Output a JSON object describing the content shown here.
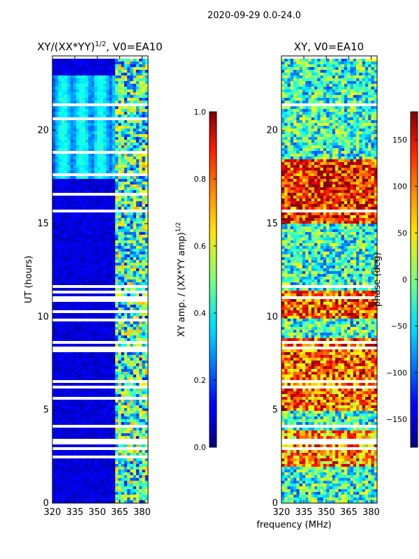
{
  "suptitle": "2020-09-29 0.0-24.0",
  "xlabel_shared": "frequency (MHz)",
  "chart_data": [
    {
      "type": "heatmap",
      "title_main": "XY/(XX*YY)",
      "title_sup": "1/2",
      "title_tail": ", V0=EA10",
      "ylabel": "UT (hours)",
      "x_range": [
        320,
        384
      ],
      "x_ticks": [
        320,
        335,
        350,
        365,
        380
      ],
      "y_range": [
        0,
        24
      ],
      "y_ticks": [
        0,
        5,
        10,
        15,
        20
      ],
      "colorbar": {
        "label_main": "XY amp. / (XX*YY amp)",
        "label_sup": "1/2",
        "range": [
          0.0,
          1.0
        ],
        "ticks": [
          "0.0",
          "0.2",
          "0.4",
          "0.6",
          "0.8",
          "1.0"
        ],
        "tick_values": [
          0.0,
          0.2,
          0.4,
          0.6,
          0.8,
          1.0
        ],
        "colormap": "jet"
      }
    },
    {
      "type": "heatmap",
      "title_main": "XY, V0=EA10",
      "ylabel": "",
      "x_range": [
        320,
        384
      ],
      "x_ticks": [
        320,
        335,
        350,
        365,
        380
      ],
      "y_range": [
        0,
        24
      ],
      "y_ticks": [
        0,
        5,
        10,
        15,
        20
      ],
      "colorbar": {
        "label_main": "phase (deg)",
        "range": [
          -180,
          180
        ],
        "ticks": [
          "−150",
          "−100",
          "−50",
          "0",
          "50",
          "100",
          "150"
        ],
        "tick_values": [
          -150,
          -100,
          -50,
          0,
          50,
          100,
          150
        ],
        "colormap": "jet"
      }
    }
  ]
}
